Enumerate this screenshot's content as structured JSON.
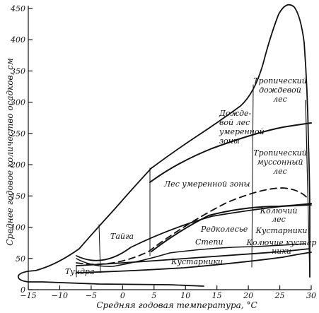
{
  "chart_data": {
    "type": "diagram",
    "xlabel": "Средняя годовая температура, °C",
    "ylabel": "Среднее годовое количество осадков, см",
    "x_ticks": [
      "−15",
      "−10",
      "−5",
      "0",
      "5",
      "10",
      "15",
      "20",
      "25",
      "30"
    ],
    "y_ticks": [
      "0",
      "50",
      "100",
      "150",
      "200",
      "250",
      "300",
      "350",
      "400",
      "450"
    ],
    "xlim": [
      -15,
      30
    ],
    "ylim": [
      0,
      450
    ],
    "biomes": [
      {
        "lines": [
          "Тундра"
        ]
      },
      {
        "lines": [
          "Тайга"
        ]
      },
      {
        "lines": [
          "Кустарники"
        ]
      },
      {
        "lines": [
          "Степи"
        ]
      },
      {
        "lines": [
          "Редколесье"
        ]
      },
      {
        "lines": [
          "Лес умеренной зоны"
        ]
      },
      {
        "lines": [
          "Дожде-",
          "вой лес",
          "умеренной",
          "зоны"
        ]
      },
      {
        "lines": [
          "Тропический",
          "дождевой",
          "лес"
        ]
      },
      {
        "lines": [
          "Тропический",
          "муссонный",
          "лес"
        ]
      },
      {
        "lines": [
          "Колючий",
          "лес"
        ]
      },
      {
        "lines": [
          "Кустарники"
        ]
      },
      {
        "lines": [
          "Колючие кустар",
          "ники"
        ]
      }
    ]
  }
}
